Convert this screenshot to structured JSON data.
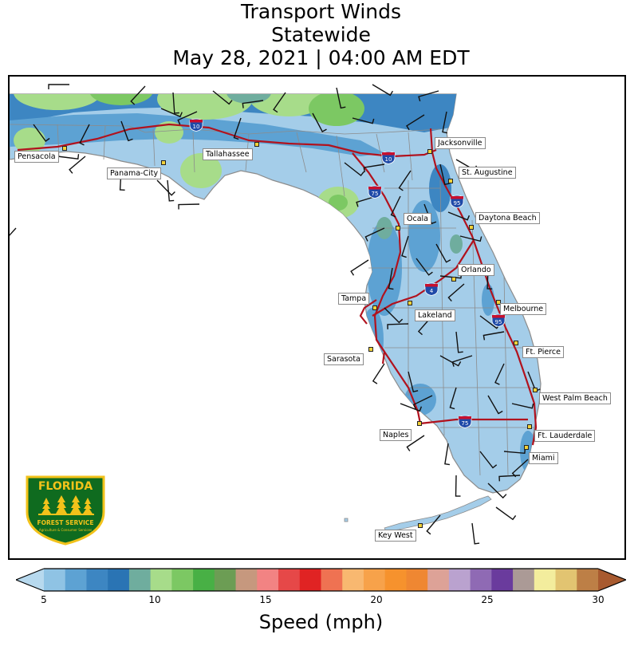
{
  "title": {
    "line1": "Transport Winds",
    "line2": "Statewide",
    "line3": "May 28, 2021 | 04:00 AM EDT"
  },
  "colorbar": {
    "label": "Speed (mph)",
    "min": 5,
    "max": 30,
    "ticks": [
      {
        "value": 5,
        "label": "5"
      },
      {
        "value": 10,
        "label": "10"
      },
      {
        "value": 15,
        "label": "15"
      },
      {
        "value": 20,
        "label": "20"
      },
      {
        "value": 25,
        "label": "25"
      },
      {
        "value": 30,
        "label": "30"
      }
    ],
    "colors": [
      "#8fc3e4",
      "#5da2d3",
      "#3d86c2",
      "#2a74b4",
      "#6fad9e",
      "#a7dc8a",
      "#7cc863",
      "#48b045",
      "#6c9d54",
      "#c6987e",
      "#f28383",
      "#e64848",
      "#e02323",
      "#ef7252",
      "#f8b870",
      "#f7a24a",
      "#f6922d",
      "#ef8732",
      "#dda297",
      "#baa2cf",
      "#8f6ab4",
      "#6a3b9d",
      "#ab9a96",
      "#f3ed9d",
      "#e2c471",
      "#bd7f46"
    ],
    "under_color": "#b7d9ee",
    "over_color": "#a85a2f"
  },
  "cities": [
    {
      "name": "Pensacola"
    },
    {
      "name": "Panama-City"
    },
    {
      "name": "Tallahassee"
    },
    {
      "name": "Jacksonville"
    },
    {
      "name": "St. Augustine"
    },
    {
      "name": "Daytona Beach"
    },
    {
      "name": "Ocala"
    },
    {
      "name": "Orlando"
    },
    {
      "name": "Tampa"
    },
    {
      "name": "Lakeland"
    },
    {
      "name": "Melbourne"
    },
    {
      "name": "Sarasota"
    },
    {
      "name": "Ft. Pierce"
    },
    {
      "name": "West Palm Beach"
    },
    {
      "name": "Naples"
    },
    {
      "name": "Ft. Lauderdale"
    },
    {
      "name": "Miami"
    },
    {
      "name": "Key West"
    }
  ],
  "highway_shields": [
    "10",
    "10",
    "75",
    "95",
    "4",
    "95",
    "75"
  ],
  "logo": {
    "text_top": "FLORIDA",
    "text_bottom": "FOREST SERVICE",
    "subtext": "Agriculture & Consumer Services"
  },
  "colors": {
    "highway": "#b1121e",
    "county_border": "#8c8c8c",
    "land_base": "#a4cde9",
    "wind_barb": "#111111",
    "logo_green": "#0f6b1f",
    "logo_gold": "#f2c21a"
  }
}
